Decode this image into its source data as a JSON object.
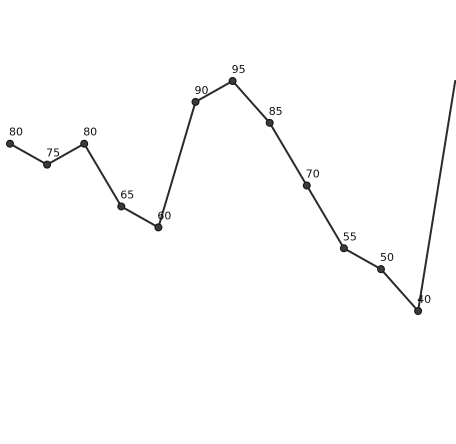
{
  "chart_data": {
    "type": "line",
    "values": [
      80,
      75,
      80,
      65,
      60,
      90,
      95,
      85,
      70,
      55,
      50,
      40
    ],
    "data_labels": [
      "80",
      "75",
      "80",
      "65",
      "60",
      "90",
      "95",
      "85",
      "70",
      "55",
      "50",
      "40"
    ],
    "series_end_value": 95,
    "ylim": [
      40,
      95
    ],
    "grid": false,
    "legend": "none",
    "colors": {
      "line": "#2a2a2a",
      "marker_fill": "#3a3a3a",
      "marker_stroke": "#111111",
      "background": "#ffffff"
    }
  }
}
